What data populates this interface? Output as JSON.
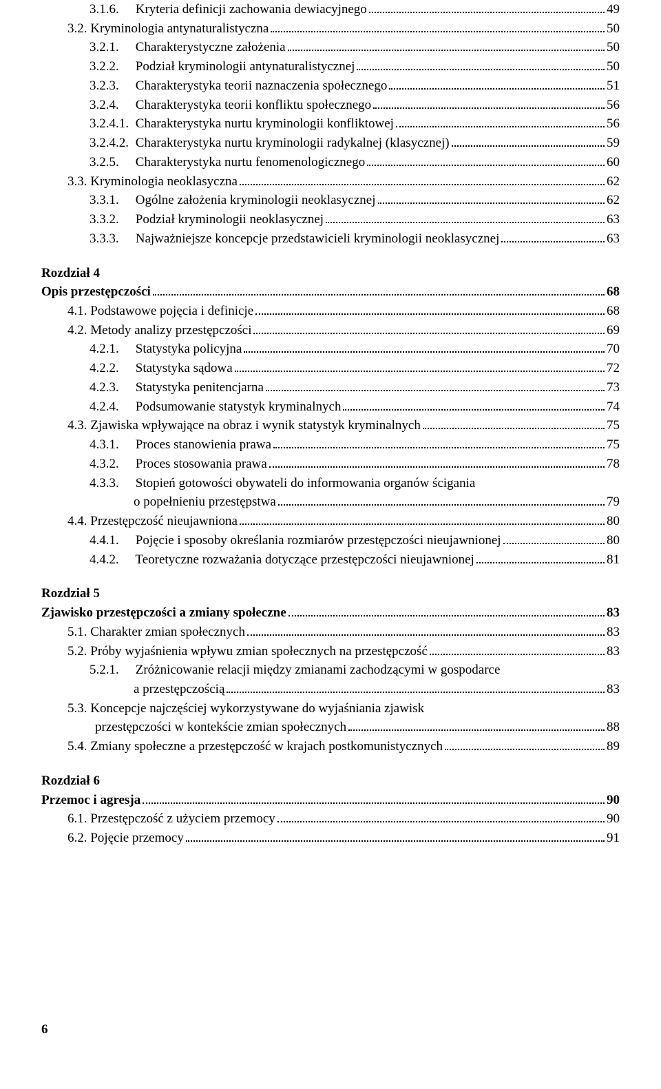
{
  "colors": {
    "text": "#000000",
    "background": "#ffffff"
  },
  "typography": {
    "font_family": "Georgia, Times New Roman, serif",
    "body_size_pt": 14,
    "line_height": 1.46
  },
  "page_number": "6",
  "entries": [
    {
      "indent": 2,
      "num": "3.1.6.",
      "title": "Kryteria definicji zachowania dewiacyjnego",
      "page": "49"
    },
    {
      "indent": 1,
      "num": "3.2.",
      "title": "Kryminologia antynaturalistyczna",
      "page": "50"
    },
    {
      "indent": 2,
      "num": "3.2.1.",
      "title": "Charakterystyczne założenia",
      "page": "50"
    },
    {
      "indent": 2,
      "num": "3.2.2.",
      "title": "Podział kryminologii antynaturalistycznej",
      "page": "50"
    },
    {
      "indent": 2,
      "num": "3.2.3.",
      "title": "Charakterystyka teorii naznaczenia społecznego",
      "page": "51"
    },
    {
      "indent": 2,
      "num": "3.2.4.",
      "title": "Charakterystyka teorii konfliktu społecznego",
      "page": "56"
    },
    {
      "indent": 2,
      "num": "3.2.4.1.",
      "title": "Charakterystyka nurtu kryminologii konfliktowej",
      "page": "56"
    },
    {
      "indent": 2,
      "num": "3.2.4.2.",
      "title": "Charakterystyka nurtu kryminologii radykalnej (klasycznej)",
      "page": "59"
    },
    {
      "indent": 2,
      "num": "3.2.5.",
      "title": "Charakterystyka nurtu fenomenologicznego",
      "page": "60"
    },
    {
      "indent": 1,
      "num": "3.3.",
      "title": "Kryminologia neoklasyczna",
      "page": "62"
    },
    {
      "indent": 2,
      "num": "3.3.1.",
      "title": "Ogólne założenia kryminologii neoklasycznej",
      "page": "62"
    },
    {
      "indent": 2,
      "num": "3.3.2.",
      "title": "Podział kryminologii neoklasycznej",
      "page": "63"
    },
    {
      "indent": 2,
      "num": "3.3.3.",
      "title": "Najważniejsze koncepcje przedstawicieli kryminologii neoklasycznej",
      "page": "63"
    },
    {
      "type": "gap"
    },
    {
      "indent": 0,
      "bold": true,
      "title": "Rozdział 4",
      "nopagenum": true
    },
    {
      "indent": 0,
      "bold": true,
      "title": "Opis przestępczości",
      "page": "68"
    },
    {
      "indent": 1,
      "num": "4.1.",
      "title": "Podstawowe pojęcia i definicje",
      "page": "68"
    },
    {
      "indent": 1,
      "num": "4.2.",
      "title": "Metody analizy przestępczości",
      "page": "69"
    },
    {
      "indent": 2,
      "num": "4.2.1.",
      "title": "Statystyka policyjna",
      "page": "70"
    },
    {
      "indent": 2,
      "num": "4.2.2.",
      "title": "Statystyka sądowa",
      "page": "72"
    },
    {
      "indent": 2,
      "num": "4.2.3.",
      "title": "Statystyka penitencjarna",
      "page": "73"
    },
    {
      "indent": 2,
      "num": "4.2.4.",
      "title": "Podsumowanie statystyk kryminalnych",
      "page": "74"
    },
    {
      "indent": 1,
      "num": "4.3.",
      "title": "Zjawiska wpływające na obraz i wynik statystyk kryminalnych",
      "page": "75"
    },
    {
      "indent": 2,
      "num": "4.3.1.",
      "title": "Proces stanowienia prawa",
      "page": "75"
    },
    {
      "indent": 2,
      "num": "4.3.2.",
      "title": "Proces stosowania prawa",
      "page": "78"
    },
    {
      "indent": 2,
      "num": "4.3.3.",
      "title_line1": "Stopień gotowości obywateli do informowania organów ścigania",
      "title_line2": "o popełnieniu przestępstwa",
      "page": "79",
      "multiline": true
    },
    {
      "indent": 1,
      "num": "4.4.",
      "title": "Przestępczość nieujawniona",
      "page": "80"
    },
    {
      "indent": 2,
      "num": "4.4.1.",
      "title": "Pojęcie i sposoby określania rozmiarów przestępczości nieujawnionej",
      "page": "80"
    },
    {
      "indent": 2,
      "num": "4.4.2.",
      "title": "Teoretyczne rozważania dotyczące przestępczości nieujawnionej",
      "page": "81"
    },
    {
      "type": "gap"
    },
    {
      "indent": 0,
      "bold": true,
      "title": "Rozdział 5",
      "nopagenum": true
    },
    {
      "indent": 0,
      "bold": true,
      "title": "Zjawisko przestępczości a zmiany społeczne",
      "page": "83"
    },
    {
      "indent": 1,
      "num": "5.1.",
      "title": "Charakter zmian społecznych",
      "page": "83"
    },
    {
      "indent": 1,
      "num": "5.2.",
      "title": "Próby wyjaśnienia wpływu zmian społecznych na przestępczość",
      "page": "83"
    },
    {
      "indent": 2,
      "num": "5.2.1.",
      "title_line1": "Zróżnicowanie relacji między zmianami zachodzącymi w gospodarce",
      "title_line2": "a przestępczością",
      "page": "83",
      "multiline": true
    },
    {
      "indent": 1,
      "num": "5.3.",
      "title_line1": "Koncepcje najczęściej wykorzystywane do wyjaśniania zjawisk",
      "title_line2": "przestępczości w kontekście zmian społecznych",
      "page": "88",
      "multiline": true,
      "cont_indent": 1
    },
    {
      "indent": 1,
      "num": "5.4.",
      "title": "Zmiany społeczne a przestępczość w krajach postkomunistycznych",
      "page": "89"
    },
    {
      "type": "gap"
    },
    {
      "indent": 0,
      "bold": true,
      "title": "Rozdział 6",
      "nopagenum": true
    },
    {
      "indent": 0,
      "bold": true,
      "title": "Przemoc i agresja",
      "page": "90"
    },
    {
      "indent": 1,
      "num": "6.1.",
      "title": "Przestępczość z użyciem przemocy",
      "page": "90"
    },
    {
      "indent": 1,
      "num": "6.2.",
      "title": "Pojęcie przemocy",
      "page": "91"
    }
  ]
}
